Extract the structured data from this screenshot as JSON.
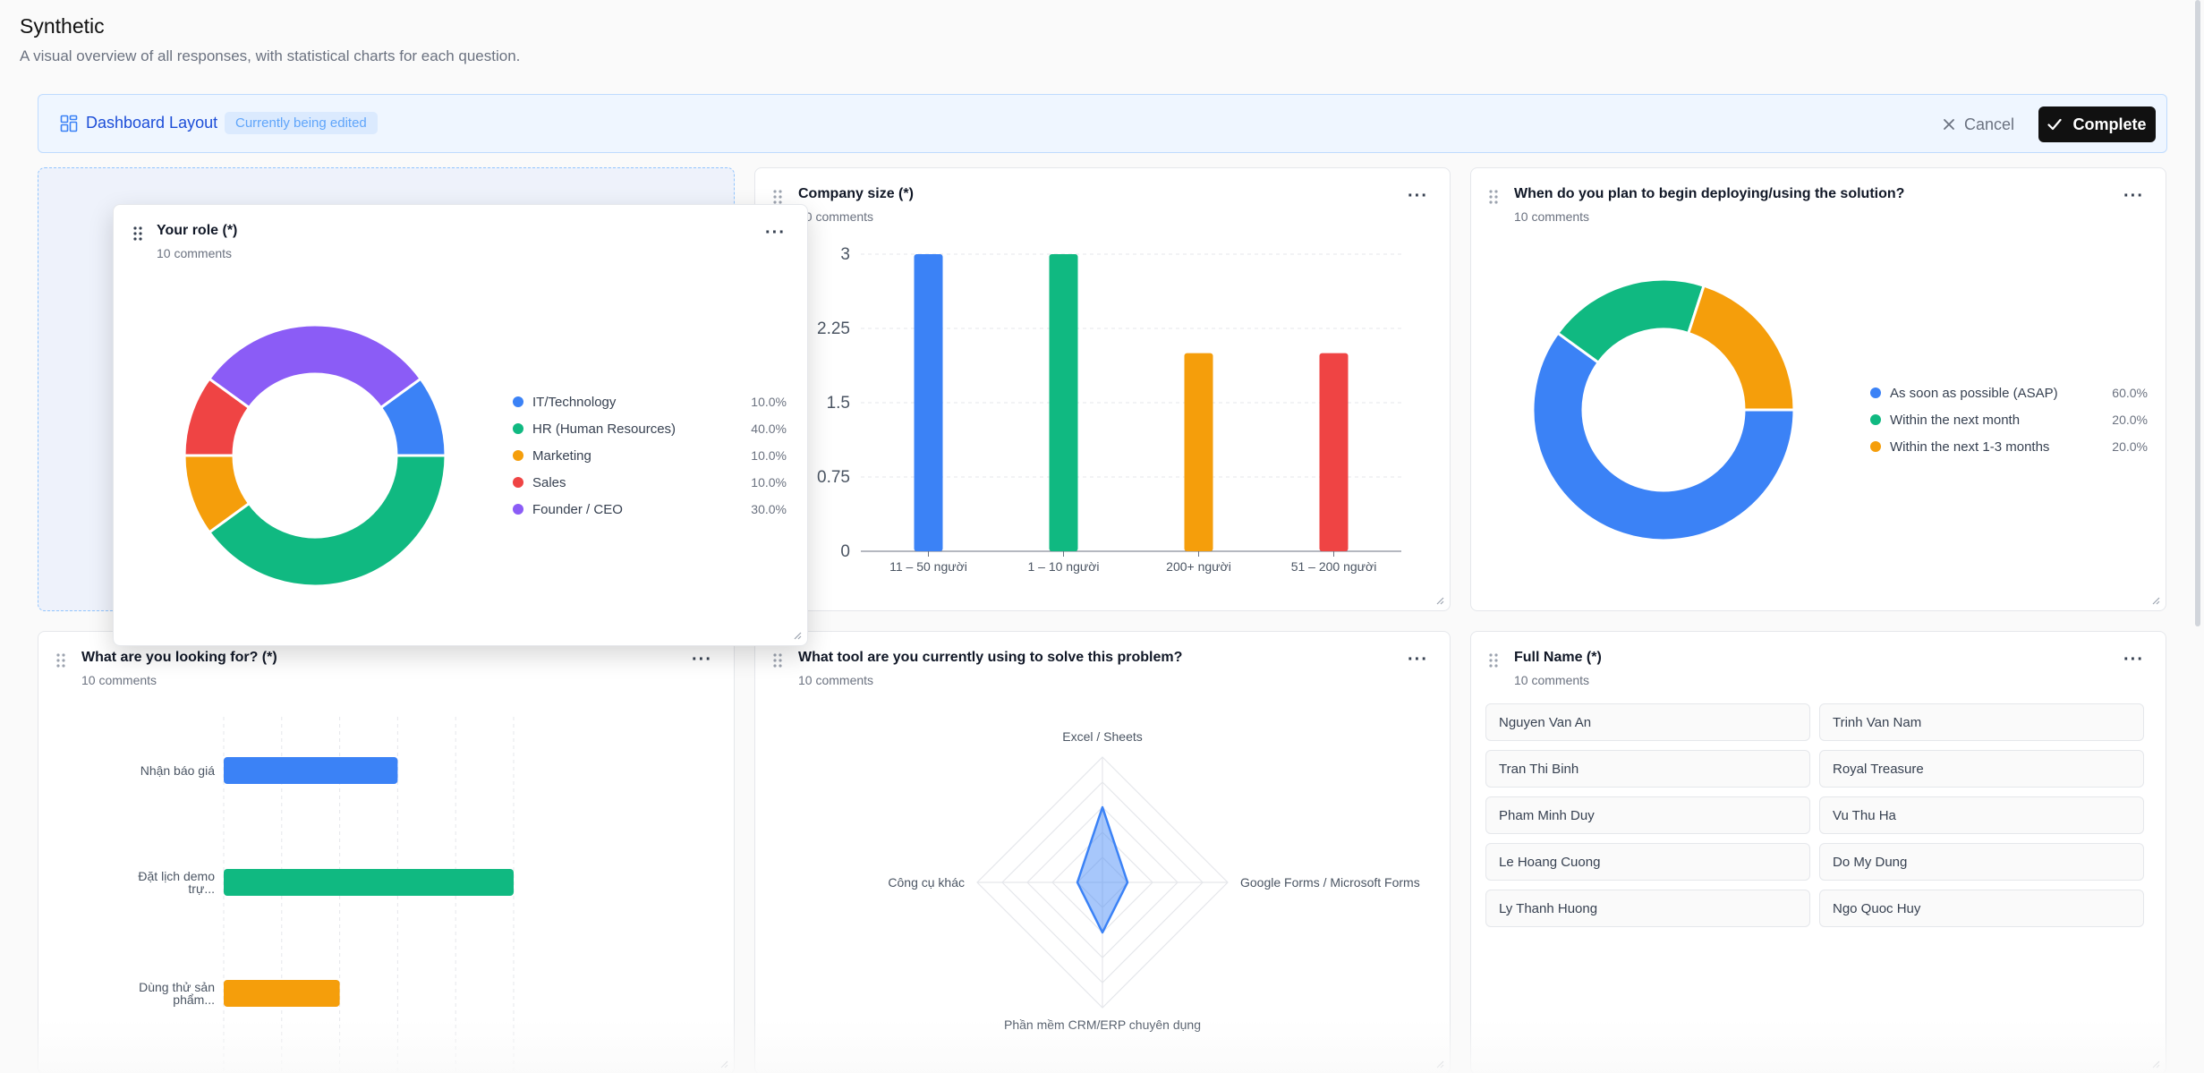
{
  "header": {
    "title": "Synthetic",
    "subtitle": "A visual overview of all responses, with statistical charts for each question."
  },
  "edit_bar": {
    "title": "Dashboard Layout",
    "badge": "Currently being edited",
    "cancel_label": "Cancel",
    "complete_label": "Complete"
  },
  "more_label": "···",
  "cards": {
    "role": {
      "title": "Your role (*)",
      "count": "10 comments",
      "chart": {
        "type": "pie",
        "labels": [
          "IT/Technology",
          "HR (Human Resources)",
          "Marketing",
          "Sales",
          "Founder / CEO"
        ],
        "percent_labels": [
          "10.0%",
          "40.0%",
          "10.0%",
          "10.0%",
          "30.0%"
        ],
        "values": [
          10,
          40,
          10,
          10,
          30
        ],
        "colors": [
          "#3b82f6",
          "#10b981",
          "#f59e0b",
          "#ef4444",
          "#8b5cf6"
        ]
      }
    },
    "company": {
      "title": "Company size (*)",
      "count": "10 comments",
      "chart": {
        "type": "bar",
        "categories": [
          "11 – 50 người",
          "1 – 10 người",
          "200+ người",
          "51 – 200 người"
        ],
        "values": [
          3,
          3,
          2,
          2
        ],
        "colors": [
          "#3b82f6",
          "#10b981",
          "#f59e0b",
          "#ef4444"
        ],
        "yticks": [
          "0",
          "0.75",
          "1.5",
          "2.25",
          "3"
        ],
        "ylim": [
          0,
          3
        ]
      }
    },
    "deploy": {
      "title": "When do you plan to begin deploying/using the solution?",
      "count": "10 comments",
      "chart": {
        "type": "pie",
        "labels": [
          "As soon as possible (ASAP)",
          "Within the next month",
          "Within the next 1-3 months"
        ],
        "percent_labels": [
          "60.0%",
          "20.0%",
          "20.0%"
        ],
        "values": [
          60,
          20,
          20
        ],
        "colors": [
          "#3b82f6",
          "#10b981",
          "#f59e0b"
        ]
      }
    },
    "looking": {
      "title": "What are you looking for? (*)",
      "count": "10 comments",
      "chart": {
        "type": "bar",
        "categories": [
          [
            "Nhận báo giá"
          ],
          [
            "Đặt lịch demo",
            "trự..."
          ],
          [
            "Dùng thử sản",
            "phẩm..."
          ]
        ],
        "values": [
          3,
          5,
          2
        ],
        "colors": [
          "#3b82f6",
          "#10b981",
          "#f59e0b"
        ]
      }
    },
    "tool": {
      "title": "What tool are you currently using to solve this problem?",
      "count": "10 comments",
      "chart": {
        "type": "radar",
        "axes": [
          "Excel / Sheets",
          "Google Forms / Microsoft Forms",
          "Phần mềm CRM/ERP chuyên dụng",
          "Công cụ khác"
        ],
        "values": [
          3,
          1,
          2,
          1
        ],
        "max": 5,
        "color": "#3b82f6"
      }
    },
    "names": {
      "title": "Full Name (*)",
      "count": "10 comments",
      "items": [
        "Nguyen Van An",
        "Trinh Van Nam",
        "Tran Thi Binh",
        "Royal Treasure",
        "Pham Minh Duy",
        "Vu Thu Ha",
        "Le Hoang Cuong",
        "Do My Dung",
        "Ly Thanh Huong",
        "Ngo Quoc Huy"
      ]
    }
  }
}
